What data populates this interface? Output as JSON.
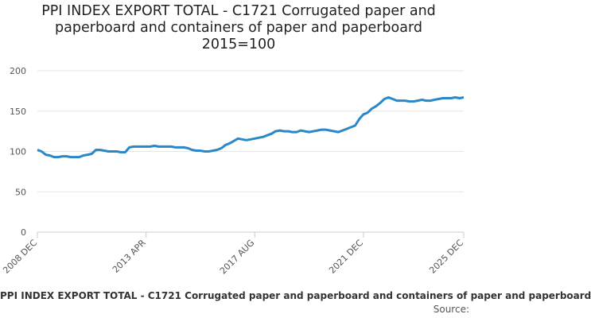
{
  "chart_data": {
    "type": "line",
    "title_lines": [
      "PPI INDEX EXPORT TOTAL - C1721 Corrugated paper and",
      "paperboard and containers of paper and paperboard",
      "2015=100"
    ],
    "xlabel": "",
    "ylabel": "",
    "ylim": [
      0,
      200
    ],
    "yticks": [
      0,
      50,
      100,
      150,
      200
    ],
    "xticks": [
      "2008 DEC",
      "2013 APR",
      "2017 AUG",
      "2021 DEC",
      "2025 DEC"
    ],
    "grid": "horizontal",
    "legend": "bottom",
    "color": "#2b88c8",
    "series": [
      {
        "name": "PPI INDEX EXPORT TOTAL - C1721 Corrugated paper and paperboard and containers of paper and paperboard",
        "points": [
          [
            "2008 DEC",
            102
          ],
          [
            "2009 FEB",
            100
          ],
          [
            "2009 APR",
            96
          ],
          [
            "2009 JUN",
            95
          ],
          [
            "2009 AUG",
            93
          ],
          [
            "2009 OCT",
            93
          ],
          [
            "2009 DEC",
            94
          ],
          [
            "2010 FEB",
            94
          ],
          [
            "2010 APR",
            93
          ],
          [
            "2010 JUN",
            93
          ],
          [
            "2010 AUG",
            93
          ],
          [
            "2010 OCT",
            95
          ],
          [
            "2010 DEC",
            96
          ],
          [
            "2011 FEB",
            97
          ],
          [
            "2011 APR",
            102
          ],
          [
            "2011 JUN",
            102
          ],
          [
            "2011 AUG",
            101
          ],
          [
            "2011 OCT",
            100
          ],
          [
            "2011 DEC",
            100
          ],
          [
            "2012 FEB",
            100
          ],
          [
            "2012 APR",
            99
          ],
          [
            "2012 JUN",
            99
          ],
          [
            "2012 AUG",
            105
          ],
          [
            "2012 OCT",
            106
          ],
          [
            "2012 DEC",
            106
          ],
          [
            "2013 APR",
            106
          ],
          [
            "2013 JUN",
            106
          ],
          [
            "2013 AUG",
            107
          ],
          [
            "2013 OCT",
            106
          ],
          [
            "2013 DEC",
            106
          ],
          [
            "2014 FEB",
            106
          ],
          [
            "2014 APR",
            106
          ],
          [
            "2014 JUN",
            105
          ],
          [
            "2014 AUG",
            105
          ],
          [
            "2014 OCT",
            105
          ],
          [
            "2014 DEC",
            104
          ],
          [
            "2015 FEB",
            102
          ],
          [
            "2015 APR",
            101
          ],
          [
            "2015 JUN",
            101
          ],
          [
            "2015 AUG",
            100
          ],
          [
            "2015 OCT",
            100
          ],
          [
            "2015 DEC",
            101
          ],
          [
            "2016 FEB",
            102
          ],
          [
            "2016 APR",
            104
          ],
          [
            "2016 JUN",
            108
          ],
          [
            "2016 AUG",
            110
          ],
          [
            "2016 OCT",
            113
          ],
          [
            "2016 DEC",
            116
          ],
          [
            "2017 FEB",
            115
          ],
          [
            "2017 APR",
            114
          ],
          [
            "2017 AUG",
            116
          ],
          [
            "2017 OCT",
            117
          ],
          [
            "2017 DEC",
            118
          ],
          [
            "2018 FEB",
            120
          ],
          [
            "2018 APR",
            122
          ],
          [
            "2018 JUN",
            125
          ],
          [
            "2018 AUG",
            126
          ],
          [
            "2018 OCT",
            125
          ],
          [
            "2018 DEC",
            125
          ],
          [
            "2019 FEB",
            124
          ],
          [
            "2019 APR",
            124
          ],
          [
            "2019 JUN",
            126
          ],
          [
            "2019 AUG",
            125
          ],
          [
            "2019 OCT",
            124
          ],
          [
            "2019 DEC",
            125
          ],
          [
            "2020 FEB",
            126
          ],
          [
            "2020 APR",
            127
          ],
          [
            "2020 JUN",
            127
          ],
          [
            "2020 AUG",
            126
          ],
          [
            "2020 OCT",
            125
          ],
          [
            "2020 DEC",
            124
          ],
          [
            "2021 FEB",
            126
          ],
          [
            "2021 APR",
            128
          ],
          [
            "2021 JUN",
            130
          ],
          [
            "2021 AUG",
            132
          ],
          [
            "2021 OCT",
            140
          ],
          [
            "2021 DEC",
            146
          ],
          [
            "2022 FEB",
            148
          ],
          [
            "2022 APR",
            153
          ],
          [
            "2022 JUN",
            156
          ],
          [
            "2022 AUG",
            160
          ],
          [
            "2022 OCT",
            165
          ],
          [
            "2022 DEC",
            167
          ],
          [
            "2023 FEB",
            165
          ],
          [
            "2023 APR",
            163
          ],
          [
            "2023 JUN",
            163
          ],
          [
            "2023 AUG",
            163
          ],
          [
            "2023 OCT",
            162
          ],
          [
            "2023 DEC",
            162
          ],
          [
            "2024 FEB",
            163
          ],
          [
            "2024 APR",
            164
          ],
          [
            "2024 JUN",
            163
          ],
          [
            "2024 AUG",
            163
          ],
          [
            "2024 OCT",
            164
          ],
          [
            "2024 DEC",
            165
          ],
          [
            "2025 FEB",
            166
          ],
          [
            "2025 APR",
            166
          ],
          [
            "2025 JUN",
            166
          ],
          [
            "2025 AUG",
            167
          ],
          [
            "2025 OCT",
            166
          ],
          [
            "2025 DEC",
            167
          ]
        ]
      }
    ],
    "source_label": "Source:"
  }
}
